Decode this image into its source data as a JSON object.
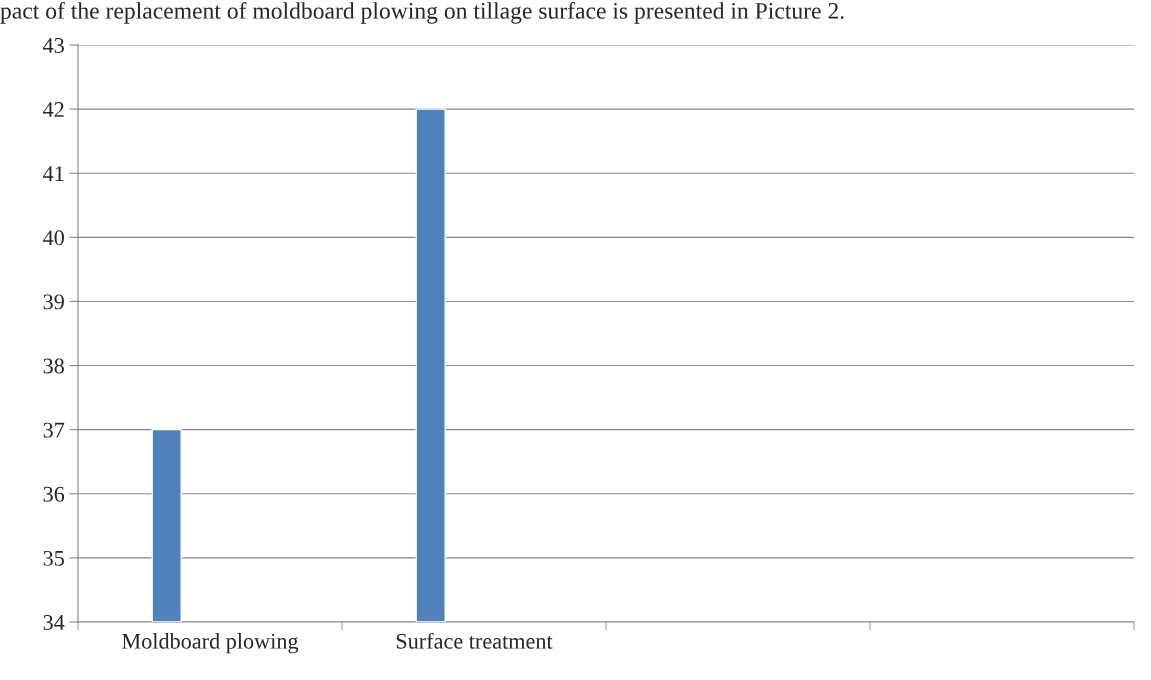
{
  "chart_data": {
    "type": "bar",
    "categories": [
      "Moldboard plowing",
      "Surface treatment",
      null,
      null
    ],
    "values": [
      37,
      42,
      null,
      null
    ],
    "color": "#4f81bd",
    "ylim": [
      34,
      43
    ],
    "yticks": [
      34,
      35,
      36,
      37,
      38,
      39,
      40,
      41,
      42,
      43
    ],
    "grid": "y",
    "annotations": [
      "pact of the replacement of moldboard plowing on tillage surface is presented in Picture 2."
    ]
  }
}
